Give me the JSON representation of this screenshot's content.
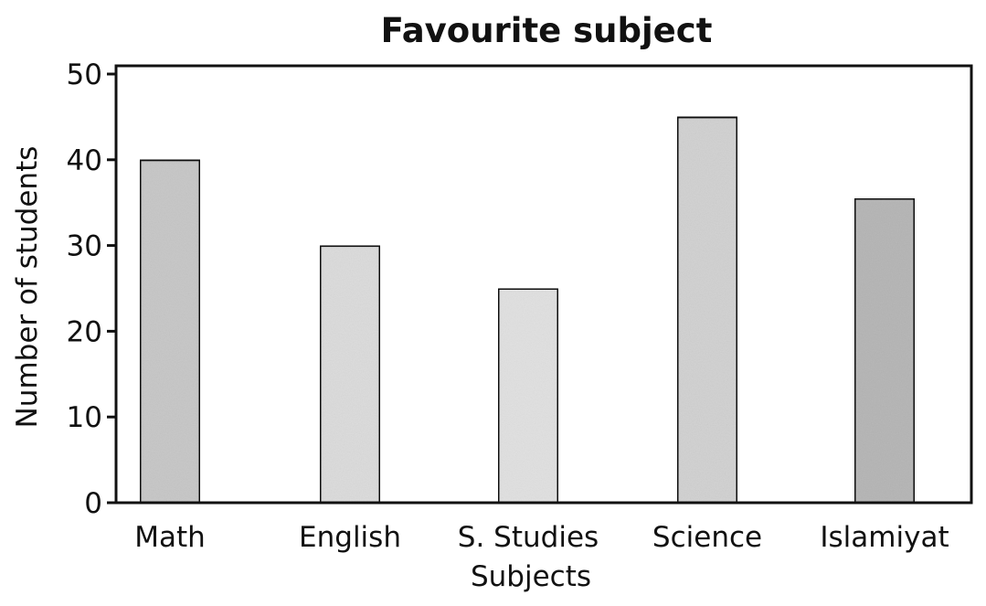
{
  "chart_data": {
    "type": "bar",
    "title": "Favourite subject",
    "xlabel": "Subjects",
    "ylabel": "Number of students",
    "categories": [
      "Math",
      "English",
      "S. Studies",
      "Science",
      "Islamiyat"
    ],
    "values": [
      40,
      30,
      25,
      45,
      35.5
    ],
    "ylim": [
      0,
      50
    ],
    "yticks": [
      0,
      10,
      20,
      30,
      40,
      50
    ],
    "grid": false,
    "legend": "none",
    "colors": {
      "bars": [
        "#c9c9c9",
        "#dddddd",
        "#e2e2e2",
        "#d3d3d3",
        "#b8b8b8"
      ],
      "bar_stroke": "#111111",
      "axis": "#111111"
    }
  }
}
